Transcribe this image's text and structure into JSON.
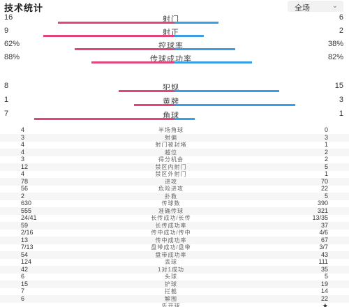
{
  "header": {
    "title": "技术统计",
    "selector": {
      "value": "全场",
      "chevron_icon": "chevron-down-icon"
    }
  },
  "colors": {
    "home": "#e0457b",
    "away": "#3a9ee4"
  },
  "bar_stats": [
    {
      "name": "射门",
      "home": "16",
      "away": "6",
      "home_share": 0.727,
      "away_share": 0.273
    },
    {
      "name": "射正",
      "home": "9",
      "away": "2",
      "home_share": 0.818,
      "away_share": 0.182
    },
    {
      "name": "控球率",
      "home": "62%",
      "away": "38%",
      "home_share": 0.62,
      "away_share": 0.38
    },
    {
      "name": "传球成功率",
      "home": "88%",
      "away": "82%",
      "home_share": 0.518,
      "away_share": 0.482
    },
    {
      "name": "犯规",
      "home": "8",
      "away": "15",
      "home_share": 0.348,
      "away_share": 0.652
    },
    {
      "name": "黄牌",
      "home": "1",
      "away": "3",
      "home_share": 0.25,
      "away_share": 0.75
    },
    {
      "name": "角球",
      "home": "7",
      "away": "1",
      "home_share": 0.875,
      "away_share": 0.125
    }
  ],
  "list_stats": [
    {
      "name": "半场角球",
      "home": "4",
      "away": "0"
    },
    {
      "name": "射偏",
      "home": "3",
      "away": "3"
    },
    {
      "name": "射门被封堵",
      "home": "4",
      "away": "1"
    },
    {
      "name": "越位",
      "home": "4",
      "away": "2"
    },
    {
      "name": "得分机会",
      "home": "3",
      "away": "2"
    },
    {
      "name": "禁区内射门",
      "home": "12",
      "away": "5"
    },
    {
      "name": "禁区外射门",
      "home": "4",
      "away": "1"
    },
    {
      "name": "进攻",
      "home": "78",
      "away": "70"
    },
    {
      "name": "危险进攻",
      "home": "56",
      "away": "22"
    },
    {
      "name": "扑救",
      "home": "2",
      "away": "5"
    },
    {
      "name": "传球数",
      "home": "630",
      "away": "390"
    },
    {
      "name": "准确传球",
      "home": "555",
      "away": "321"
    },
    {
      "name": "长传成功/长传",
      "home": "24/41",
      "away": "13/35"
    },
    {
      "name": "长传成功率",
      "home": "59",
      "away": "37"
    },
    {
      "name": "传中成功/传中",
      "home": "2/16",
      "away": "4/6"
    },
    {
      "name": "传中成功率",
      "home": "13",
      "away": "67"
    },
    {
      "name": "盘带成功/盘带",
      "home": "7/13",
      "away": "3/7"
    },
    {
      "name": "盘带成功率",
      "home": "54",
      "away": "43"
    },
    {
      "name": "丢球",
      "home": "124",
      "away": "111"
    },
    {
      "name": "1对1成功",
      "home": "42",
      "away": "35"
    },
    {
      "name": "头球",
      "home": "6",
      "away": "5"
    },
    {
      "name": "铲球",
      "home": "15",
      "away": "19"
    },
    {
      "name": "拦截",
      "home": "7",
      "away": "14"
    },
    {
      "name": "解围",
      "home": "6",
      "away": "22"
    },
    {
      "name": "先开球",
      "home": "",
      "away": "★"
    }
  ]
}
